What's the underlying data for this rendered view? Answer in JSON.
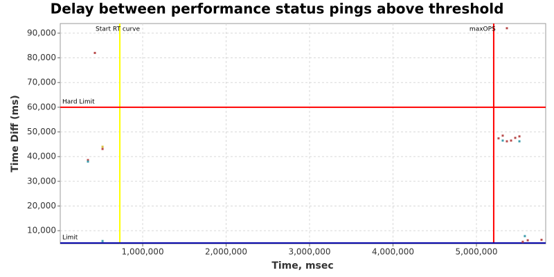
{
  "chart_data": {
    "type": "scatter",
    "title": "Delay between performance status pings above threshold",
    "xlabel": "Time, msec",
    "ylabel": "Time Diff (ms)",
    "xlim": [
      12000,
      5830000
    ],
    "ylim": [
      4700,
      93900
    ],
    "grid": true,
    "xticks": [
      {
        "value": 1000000,
        "label": "1,000,000"
      },
      {
        "value": 2000000,
        "label": "2,000,000"
      },
      {
        "value": 3000000,
        "label": "3,000,000"
      },
      {
        "value": 4000000,
        "label": "4,000,000"
      },
      {
        "value": 5000000,
        "label": "5,000,000"
      }
    ],
    "yticks": [
      {
        "value": 10000,
        "label": "10,000"
      },
      {
        "value": 20000,
        "label": "20,000"
      },
      {
        "value": 30000,
        "label": "30,000"
      },
      {
        "value": 40000,
        "label": "40,000"
      },
      {
        "value": 50000,
        "label": "50,000"
      },
      {
        "value": 60000,
        "label": "60,000"
      },
      {
        "value": 70000,
        "label": "70,000"
      },
      {
        "value": 80000,
        "label": "80,000"
      },
      {
        "value": 90000,
        "label": "90,000"
      }
    ],
    "series": [
      {
        "color": "#b84a4a",
        "x": [
          427000,
          344000,
          519000,
          5265000,
          5315000,
          5365000,
          5415000,
          5465000,
          5515000,
          5365000,
          5555000,
          5615000,
          5780000
        ],
        "values": [
          82000,
          38600,
          43100,
          47400,
          48500,
          46200,
          46500,
          47600,
          48200,
          92000,
          5500,
          6100,
          6300
        ]
      },
      {
        "color": "#3a9aaa",
        "x": [
          344000,
          519000,
          5315000,
          5515000,
          5580000
        ],
        "values": [
          38000,
          5800,
          46500,
          46200,
          7800
        ]
      },
      {
        "color": "#d8c040",
        "x": [
          519000
        ],
        "values": [
          44000
        ]
      }
    ],
    "reference_lines": [
      {
        "orientation": "vertical",
        "value": 726000,
        "label": "Start RT curve",
        "color": "#ffff00"
      },
      {
        "orientation": "vertical",
        "value": 5207000,
        "label": "maxOPS",
        "color": "#ff0000"
      },
      {
        "orientation": "horizontal",
        "value": 60000,
        "label": "Hard Limit",
        "color": "#ff0000"
      },
      {
        "orientation": "horizontal",
        "value": 5000,
        "label": "Limit",
        "color": "#0000aa"
      }
    ]
  }
}
